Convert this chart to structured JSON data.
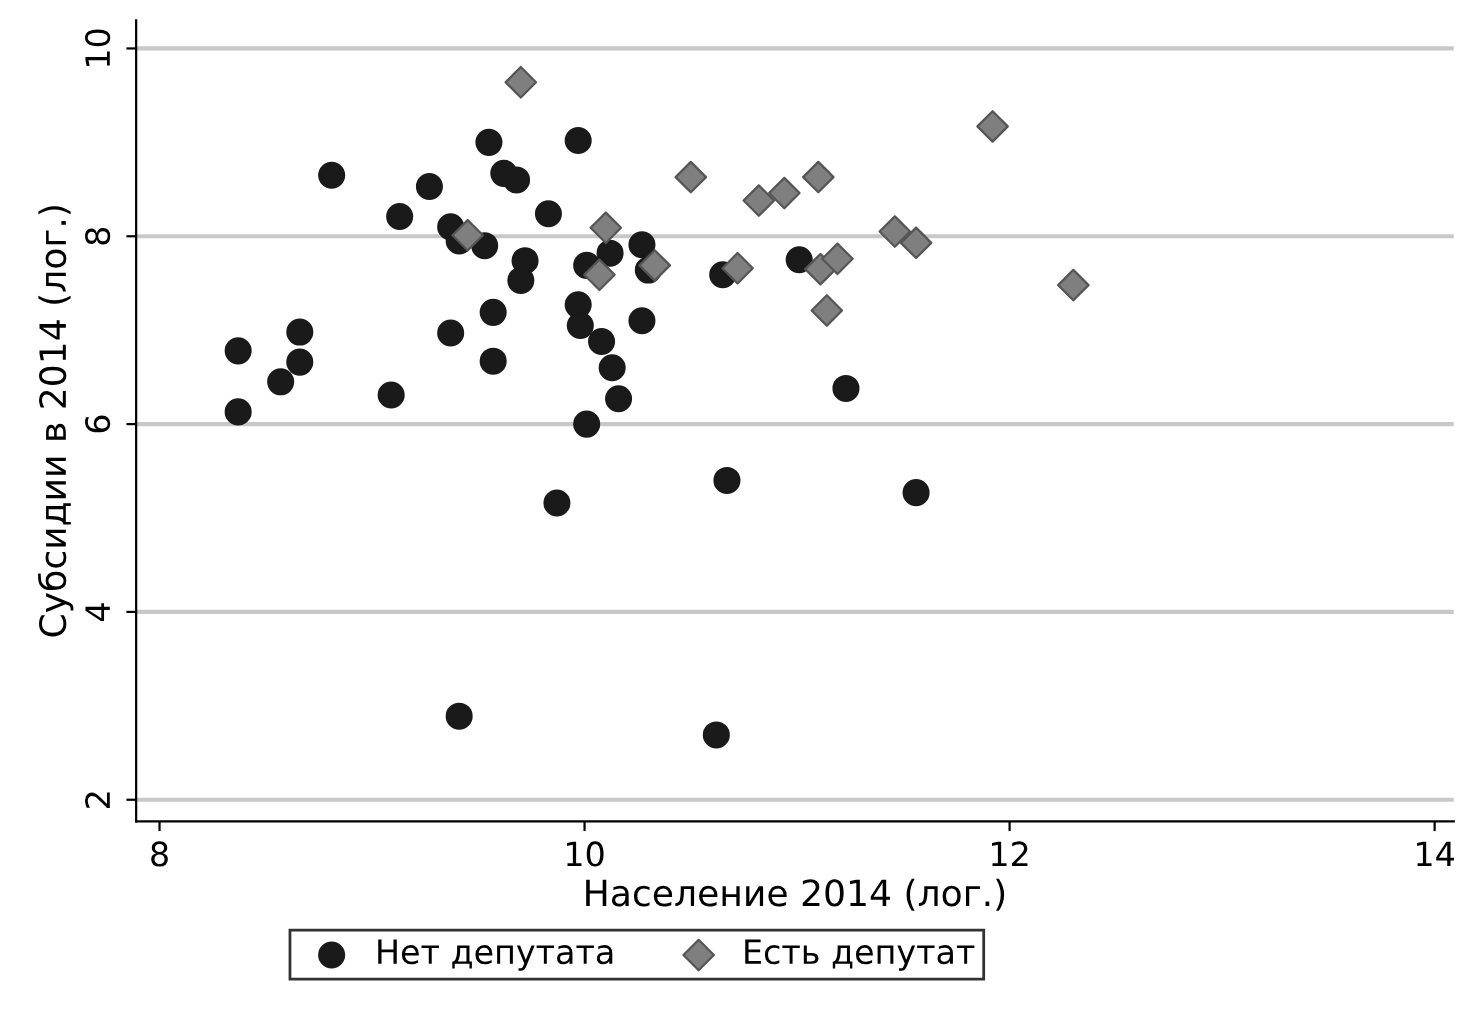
{
  "chart_data": {
    "type": "scatter",
    "xlabel": "Население 2014 (лог.)",
    "ylabel": "Субсидии в 2014 (лог.)",
    "xlim": [
      7.89,
      14.09
    ],
    "ylim": [
      1.77,
      10.3
    ],
    "xticks": [
      8,
      10,
      12,
      14
    ],
    "yticks": [
      2,
      4,
      6,
      8,
      10
    ],
    "grid": "y",
    "legend": "bottom",
    "series": [
      {
        "name": "Нет депутата",
        "color": "#1a1a1a",
        "marker": "circle",
        "x": [
          8.37,
          8.37,
          8.57,
          8.66,
          8.66,
          8.81,
          9.09,
          9.13,
          9.27,
          9.37,
          9.41,
          9.37,
          9.53,
          9.55,
          9.62,
          9.68,
          9.72,
          9.7,
          9.57,
          9.57,
          9.83,
          9.97,
          9.97,
          9.98,
          10.01,
          10.01,
          10.08,
          10.12,
          10.13,
          10.16,
          10.27,
          10.27,
          10.3,
          10.65,
          11.01,
          11.23,
          9.87,
          10.67,
          11.56,
          9.41,
          10.62
        ],
        "values": [
          6.78,
          6.13,
          6.45,
          6.98,
          6.66,
          8.65,
          6.31,
          8.21,
          8.53,
          8.1,
          7.95,
          6.97,
          7.9,
          9.0,
          8.67,
          8.6,
          7.74,
          7.53,
          7.19,
          6.67,
          8.24,
          9.02,
          7.27,
          7.05,
          7.69,
          6.0,
          6.88,
          7.82,
          6.6,
          6.27,
          7.91,
          7.1,
          7.64,
          7.59,
          7.75,
          6.38,
          5.16,
          5.4,
          5.27,
          2.89,
          2.69
        ]
      },
      {
        "name": "Есть депутат",
        "color": "#7f7f7f",
        "marker": "diamond",
        "x": [
          9.7,
          9.45,
          10.1,
          10.07,
          10.33,
          10.5,
          10.72,
          10.82,
          10.94,
          11.1,
          11.11,
          11.19,
          11.14,
          11.46,
          11.56,
          11.92,
          12.3
        ],
        "values": [
          9.64,
          8.01,
          8.09,
          7.59,
          7.69,
          8.63,
          7.66,
          8.38,
          8.46,
          8.63,
          7.65,
          7.76,
          7.21,
          8.05,
          7.93,
          9.17,
          7.48
        ]
      }
    ]
  }
}
